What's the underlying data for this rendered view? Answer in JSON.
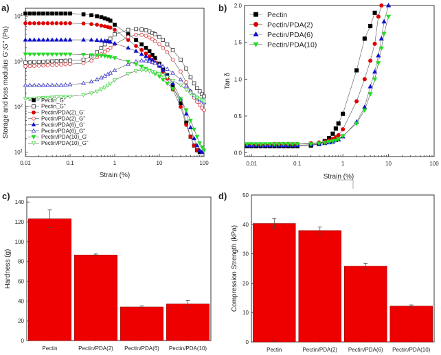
{
  "panel_labels": [
    "a)",
    "b)",
    "c)",
    "d)"
  ],
  "chart_data": [
    {
      "panel": "a)",
      "type": "scatter",
      "xscale": "log",
      "yscale": "log",
      "xlim": [
        0.01,
        100
      ],
      "ylim": [
        8,
        15000
      ],
      "xlabel": "Strain (%)",
      "ylabel": "Storage and loss modulus G';G\" (Pa)",
      "xticks": [
        0.01,
        0.1,
        1,
        10,
        100
      ],
      "xtick_labels": [
        "0.01",
        "0.1",
        "1",
        "10",
        "100"
      ],
      "yticks": [
        10,
        100,
        1000,
        10000
      ],
      "series": [
        {
          "name": "Pectin_G'",
          "color": "#000000",
          "marker": "square",
          "filled": true,
          "x": [
            0.01,
            0.0126,
            0.0158,
            0.02,
            0.0251,
            0.0316,
            0.0398,
            0.05,
            0.063,
            0.079,
            0.1,
            0.2,
            0.3,
            0.4,
            0.5,
            0.6,
            0.7,
            0.8,
            1,
            2,
            3,
            4,
            5,
            6,
            7,
            8,
            10,
            12,
            15,
            20,
            30,
            40,
            50,
            60,
            70,
            80
          ],
          "y": [
            11500,
            11500,
            11500,
            11500,
            11500,
            11500,
            11500,
            11500,
            11500,
            11500,
            11500,
            11000,
            10500,
            10000,
            9500,
            9000,
            8500,
            8000,
            6500,
            4000,
            3000,
            2400,
            2000,
            1700,
            1400,
            1200,
            900,
            700,
            500,
            280,
            120,
            45,
            22,
            14,
            11,
            10
          ]
        },
        {
          "name": "Pectin_G\"",
          "color": "#444444",
          "marker": "square",
          "filled": false,
          "x": [
            0.01,
            0.0126,
            0.0158,
            0.02,
            0.0251,
            0.0316,
            0.0398,
            0.05,
            0.063,
            0.079,
            0.1,
            0.2,
            0.3,
            0.4,
            0.5,
            0.6,
            0.7,
            0.8,
            1,
            2,
            3,
            4,
            5,
            6,
            7,
            8,
            10,
            12,
            15,
            20,
            30,
            40,
            50,
            60,
            70,
            80,
            90,
            100
          ],
          "y": [
            950,
            960,
            970,
            980,
            990,
            1000,
            1010,
            1020,
            1030,
            1040,
            1050,
            1100,
            1300,
            1600,
            2000,
            2400,
            2800,
            3200,
            4000,
            5000,
            5200,
            5100,
            4900,
            4600,
            4300,
            4000,
            3500,
            3000,
            2400,
            1800,
            1100,
            700,
            450,
            330,
            260,
            220,
            190,
            170
          ]
        },
        {
          "name": "Pectin/PDA(2)_G'",
          "color": "#e00000",
          "marker": "circle",
          "filled": true,
          "x": [
            0.01,
            0.0126,
            0.0158,
            0.02,
            0.0251,
            0.0316,
            0.0398,
            0.05,
            0.063,
            0.079,
            0.1,
            0.2,
            0.3,
            0.4,
            0.5,
            0.6,
            0.7,
            0.8,
            1,
            2,
            3,
            4,
            5,
            6,
            7,
            8,
            10,
            12,
            15,
            20,
            30,
            40,
            50,
            60,
            70
          ],
          "y": [
            7000,
            7000,
            7000,
            7000,
            7000,
            7000,
            7000,
            7000,
            7000,
            7000,
            7000,
            6900,
            6700,
            6500,
            6200,
            6000,
            5800,
            5600,
            5000,
            3000,
            2200,
            1800,
            1500,
            1300,
            1100,
            950,
            800,
            600,
            420,
            240,
            100,
            40,
            22,
            14,
            11
          ]
        },
        {
          "name": "Pectin/PDA(2)_G\"",
          "color": "#e04040",
          "marker": "circle",
          "filled": false,
          "x": [
            0.01,
            0.0126,
            0.0158,
            0.02,
            0.0251,
            0.0316,
            0.0398,
            0.05,
            0.063,
            0.079,
            0.1,
            0.2,
            0.3,
            0.4,
            0.5,
            0.6,
            0.7,
            0.8,
            1,
            2,
            3,
            4,
            5,
            6,
            7,
            8,
            10,
            12,
            15,
            20,
            30,
            40,
            50,
            60,
            70,
            80,
            90,
            100
          ],
          "y": [
            780,
            790,
            800,
            810,
            820,
            830,
            840,
            850,
            860,
            870,
            880,
            920,
            1050,
            1250,
            1450,
            1650,
            1800,
            2000,
            2400,
            3500,
            3900,
            3900,
            3700,
            3400,
            3100,
            2800,
            2400,
            2000,
            1600,
            1100,
            600,
            350,
            220,
            160,
            130,
            110,
            95,
            85
          ]
        },
        {
          "name": "Pectin/PDA(6)_G'",
          "color": "#1010d0",
          "marker": "triangle",
          "filled": true,
          "x": [
            0.01,
            0.0126,
            0.0158,
            0.02,
            0.0251,
            0.0316,
            0.0398,
            0.05,
            0.063,
            0.079,
            0.1,
            0.2,
            0.3,
            0.4,
            0.5,
            0.6,
            0.7,
            0.8,
            1,
            2,
            3,
            4,
            5,
            6,
            7,
            8,
            10,
            12,
            15,
            20,
            30,
            40,
            50,
            60,
            70,
            80,
            90
          ],
          "y": [
            3000,
            3000,
            3000,
            3000,
            3000,
            3000,
            3000,
            3000,
            3000,
            3000,
            3000,
            3000,
            3000,
            2950,
            2900,
            2850,
            2800,
            2700,
            2500,
            2000,
            1700,
            1450,
            1300,
            1150,
            1050,
            950,
            800,
            650,
            500,
            330,
            150,
            70,
            35,
            20,
            14,
            11,
            10
          ]
        },
        {
          "name": "Pectin/PDA(6)_G\"",
          "color": "#4040d0",
          "marker": "triangle",
          "filled": false,
          "x": [
            0.01,
            0.0126,
            0.0158,
            0.02,
            0.0251,
            0.0316,
            0.0398,
            0.05,
            0.063,
            0.079,
            0.1,
            0.2,
            0.3,
            0.4,
            0.5,
            0.6,
            0.7,
            0.8,
            1,
            2,
            3,
            4,
            5,
            6,
            7,
            8,
            10,
            12,
            15,
            20,
            30,
            40,
            50,
            60,
            70,
            80,
            90,
            100
          ],
          "y": [
            300,
            300,
            300,
            300,
            300,
            300,
            300,
            300,
            300,
            305,
            310,
            330,
            360,
            400,
            440,
            480,
            520,
            560,
            640,
            880,
            1000,
            1050,
            1040,
            1000,
            960,
            920,
            860,
            780,
            680,
            560,
            400,
            290,
            220,
            180,
            160,
            145,
            135,
            125
          ]
        },
        {
          "name": "Pectin/PDA(10)_G'",
          "color": "#22dd22",
          "marker": "triangle-down",
          "filled": true,
          "x": [
            0.01,
            0.0126,
            0.0158,
            0.02,
            0.0251,
            0.0316,
            0.0398,
            0.05,
            0.063,
            0.079,
            0.1,
            0.2,
            0.3,
            0.4,
            0.5,
            0.6,
            0.7,
            0.8,
            1,
            2,
            3,
            4,
            5,
            6,
            7,
            8,
            10,
            12,
            15,
            20,
            30,
            40,
            50,
            60,
            70,
            80,
            90,
            100
          ],
          "y": [
            1450,
            1450,
            1450,
            1450,
            1450,
            1450,
            1450,
            1450,
            1450,
            1450,
            1450,
            1430,
            1400,
            1380,
            1350,
            1320,
            1300,
            1270,
            1200,
            1000,
            880,
            780,
            700,
            640,
            590,
            540,
            470,
            400,
            330,
            250,
            150,
            85,
            50,
            32,
            22,
            16,
            13,
            11
          ]
        },
        {
          "name": "Pectin/PDA(10)_G\"",
          "color": "#55dd55",
          "marker": "triangle-down",
          "filled": false,
          "x": [
            0.01,
            0.0126,
            0.0158,
            0.02,
            0.0251,
            0.0316,
            0.0398,
            0.05,
            0.063,
            0.079,
            0.1,
            0.2,
            0.3,
            0.4,
            0.5,
            0.6,
            0.7,
            0.8,
            1,
            2,
            3,
            4,
            5,
            6,
            7,
            8,
            10,
            12,
            15,
            20,
            30,
            40,
            50,
            60,
            70,
            80,
            90,
            100
          ],
          "y": [
            150,
            152,
            154,
            156,
            158,
            160,
            162,
            164,
            166,
            168,
            170,
            185,
            200,
            220,
            245,
            270,
            300,
            330,
            390,
            540,
            620,
            650,
            640,
            620,
            600,
            580,
            540,
            500,
            450,
            380,
            300,
            240,
            200,
            175,
            160,
            150,
            142,
            135
          ]
        }
      ]
    },
    {
      "panel": "b)",
      "type": "scatter",
      "xscale": "log",
      "xlim": [
        0.007,
        100
      ],
      "ylim": [
        -0.05,
        2.0
      ],
      "xlabel": "Strain (%)",
      "ylabel": "Tan δ",
      "xticks": [
        0.01,
        0.1,
        1,
        10,
        100
      ],
      "xtick_labels": [
        "0.01",
        "0.1",
        "1",
        "10",
        "100"
      ],
      "yticks": [
        0.0,
        0.5,
        1.0,
        1.5,
        2.0
      ],
      "ytick_labels": [
        "0.0",
        "0.5",
        "1.0",
        "1.5",
        "2.0"
      ],
      "series": [
        {
          "name": "Pectin",
          "color": "#000000",
          "marker": "square",
          "x": [
            0.008,
            0.01,
            0.0126,
            0.0158,
            0.02,
            0.0251,
            0.0316,
            0.0398,
            0.05,
            0.063,
            0.079,
            0.1,
            0.2,
            0.3,
            0.4,
            0.5,
            0.6,
            0.7,
            0.8,
            1,
            2,
            3,
            4,
            5
          ],
          "y": [
            0.09,
            0.09,
            0.09,
            0.09,
            0.09,
            0.09,
            0.09,
            0.09,
            0.09,
            0.09,
            0.09,
            0.09,
            0.1,
            0.12,
            0.16,
            0.2,
            0.26,
            0.33,
            0.4,
            0.53,
            1.12,
            1.55,
            1.72,
            1.9
          ]
        },
        {
          "name": "Pectin/PDA(2)",
          "color": "#e00000",
          "marker": "circle",
          "x": [
            0.008,
            0.01,
            0.0126,
            0.0158,
            0.02,
            0.0251,
            0.0316,
            0.0398,
            0.05,
            0.063,
            0.079,
            0.1,
            0.2,
            0.3,
            0.4,
            0.5,
            0.6,
            0.7,
            0.8,
            1,
            2,
            3,
            4,
            5,
            6,
            7
          ],
          "y": [
            0.11,
            0.11,
            0.11,
            0.11,
            0.11,
            0.11,
            0.12,
            0.12,
            0.12,
            0.12,
            0.12,
            0.12,
            0.13,
            0.14,
            0.15,
            0.17,
            0.19,
            0.21,
            0.24,
            0.32,
            0.7,
            1.0,
            1.25,
            1.48,
            1.85,
            2.0
          ]
        },
        {
          "name": "Pectin/PDA(6)",
          "color": "#1010d0",
          "marker": "triangle",
          "x": [
            0.008,
            0.01,
            0.0126,
            0.0158,
            0.02,
            0.0251,
            0.0316,
            0.0398,
            0.05,
            0.063,
            0.079,
            0.1,
            0.2,
            0.3,
            0.4,
            0.5,
            0.6,
            0.7,
            0.8,
            1,
            2,
            3,
            4,
            5,
            6,
            7,
            8,
            10
          ],
          "y": [
            0.1,
            0.1,
            0.1,
            0.1,
            0.1,
            0.1,
            0.1,
            0.1,
            0.1,
            0.1,
            0.1,
            0.1,
            0.11,
            0.12,
            0.13,
            0.14,
            0.15,
            0.17,
            0.18,
            0.22,
            0.42,
            0.62,
            0.9,
            1.1,
            1.32,
            1.55,
            1.78,
            2.0
          ]
        },
        {
          "name": "Pectin/PDA(10)",
          "color": "#22dd22",
          "marker": "triangle-down",
          "x": [
            0.008,
            0.01,
            0.0126,
            0.0158,
            0.02,
            0.0251,
            0.0316,
            0.0398,
            0.05,
            0.063,
            0.079,
            0.1,
            0.2,
            0.3,
            0.4,
            0.5,
            0.6,
            0.7,
            0.8,
            1,
            2,
            3,
            4,
            5,
            6,
            7,
            8,
            10
          ],
          "y": [
            0.12,
            0.12,
            0.12,
            0.12,
            0.12,
            0.12,
            0.12,
            0.12,
            0.12,
            0.12,
            0.12,
            0.12,
            0.12,
            0.13,
            0.14,
            0.15,
            0.16,
            0.17,
            0.19,
            0.23,
            0.4,
            0.58,
            0.8,
            1.0,
            1.22,
            1.42,
            1.62,
            1.85
          ]
        }
      ]
    },
    {
      "panel": "c)",
      "type": "bar",
      "categories": [
        "Pectin",
        "Pectin/PDA(2)",
        "Pectin/PDA(6)",
        "Pectin/PDA(10)"
      ],
      "values": [
        123,
        86.5,
        34,
        37
      ],
      "errors": [
        9,
        1,
        1,
        3.5
      ],
      "ylabel": "Hardness (g)",
      "ylim": [
        0,
        145
      ],
      "yticks": [
        0,
        20,
        40,
        60,
        80,
        100,
        120,
        140
      ],
      "bar_color": "#ee0000"
    },
    {
      "panel": "d)",
      "type": "bar",
      "categories": [
        "Pectin",
        "Pectin/PDA(2)",
        "Pectin/PDA(6)",
        "Pectin/PDA(10)"
      ],
      "values": [
        40.3,
        37.9,
        25.8,
        12.2
      ],
      "errors": [
        1.7,
        1.2,
        1.0,
        0.4
      ],
      "ylabel": "Compression Strength (kPa)",
      "ylim": [
        0,
        50
      ],
      "yticks": [
        0,
        10,
        20,
        30,
        40,
        50
      ],
      "bar_color": "#ee0000"
    }
  ]
}
